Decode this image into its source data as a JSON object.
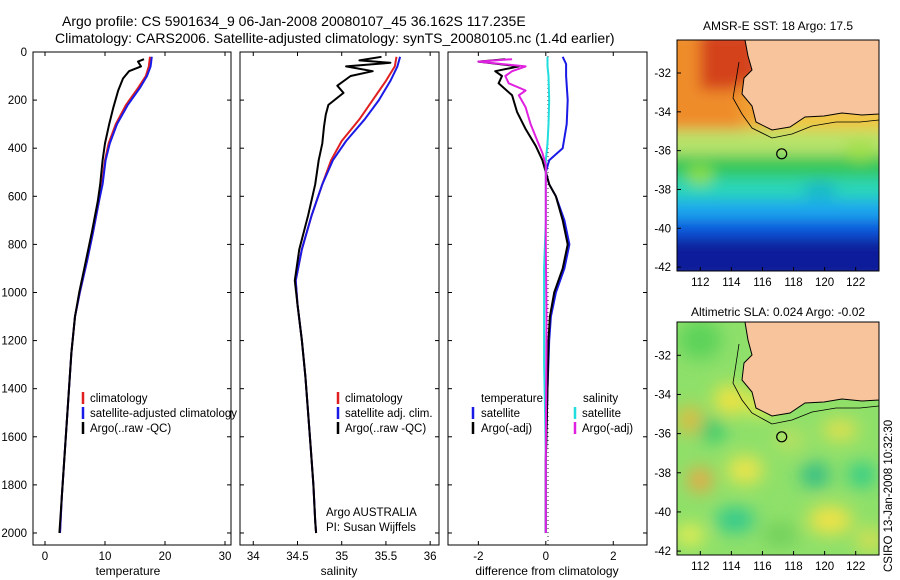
{
  "header": {
    "title_line1": "Argo profile: CS 5901634_9 06-Jan-2008 20080107_45 36.162S 117.235E",
    "title_line2": "Climatology: CARS2006. Satellite-adjusted climatology: synTS_20080105.nc (1.4d earlier)"
  },
  "colors": {
    "climatology": "#e02020",
    "satellite": "#1a1ae6",
    "argo": "#000000",
    "sat_salinity": "#22dddd",
    "argo_salinity": "#e020e0",
    "land": "#f7c49c"
  },
  "chart_data": [
    {
      "type": "line",
      "id": "temperature",
      "xlabel": "temperature",
      "xlim": [
        -2,
        31
      ],
      "ylim": [
        2050,
        0
      ],
      "xticks": [
        "0",
        "10",
        "20",
        "30"
      ],
      "xtick_values": [
        0,
        10,
        20,
        30
      ],
      "yticks": [
        "0",
        "200",
        "400",
        "600",
        "800",
        "1000",
        "1200",
        "1400",
        "1600",
        "1800",
        "2000"
      ],
      "ytick_values": [
        0,
        200,
        400,
        600,
        800,
        1000,
        1200,
        1400,
        1600,
        1800,
        2000
      ],
      "legend": [
        "climatology",
        "satellite-adjusted climatology",
        "Argo(..raw -QC)"
      ],
      "series": [
        {
          "name": "climatology",
          "color": "#e02020",
          "points": [
            [
              17.5,
              20
            ],
            [
              17.3,
              60
            ],
            [
              16.8,
              100
            ],
            [
              15.5,
              150
            ],
            [
              13.5,
              220
            ],
            [
              11.8,
              300
            ],
            [
              10.6,
              380
            ],
            [
              10.0,
              450
            ],
            [
              9.5,
              550
            ],
            [
              9.0,
              620
            ],
            [
              8.0,
              750
            ],
            [
              7.0,
              870
            ],
            [
              5.8,
              1000
            ],
            [
              5.0,
              1100
            ],
            [
              4.4,
              1250
            ],
            [
              4.0,
              1400
            ],
            [
              3.6,
              1550
            ],
            [
              3.2,
              1700
            ],
            [
              2.8,
              1850
            ],
            [
              2.5,
              2000
            ]
          ]
        },
        {
          "name": "satellite-adjusted climatology",
          "color": "#1a1ae6",
          "points": [
            [
              17.8,
              20
            ],
            [
              17.6,
              60
            ],
            [
              17.0,
              100
            ],
            [
              15.8,
              150
            ],
            [
              13.8,
              220
            ],
            [
              12.0,
              300
            ],
            [
              10.8,
              380
            ],
            [
              10.1,
              450
            ],
            [
              9.6,
              550
            ],
            [
              9.0,
              620
            ],
            [
              8.0,
              750
            ],
            [
              7.0,
              870
            ],
            [
              5.8,
              1000
            ],
            [
              5.0,
              1100
            ],
            [
              4.4,
              1250
            ],
            [
              4.0,
              1400
            ],
            [
              3.6,
              1550
            ],
            [
              3.2,
              1700
            ],
            [
              2.8,
              1850
            ],
            [
              2.5,
              2000
            ]
          ]
        },
        {
          "name": "Argo(..raw -QC)",
          "color": "#000000",
          "points": [
            [
              16.5,
              30
            ],
            [
              15.5,
              40
            ],
            [
              16.0,
              60
            ],
            [
              14.0,
              80
            ],
            [
              13.0,
              110
            ],
            [
              12.2,
              160
            ],
            [
              11.4,
              230
            ],
            [
              10.7,
              300
            ],
            [
              10.0,
              380
            ],
            [
              9.6,
              450
            ],
            [
              9.2,
              550
            ],
            [
              8.8,
              620
            ],
            [
              7.8,
              750
            ],
            [
              6.8,
              870
            ],
            [
              5.7,
              1000
            ],
            [
              5.0,
              1100
            ],
            [
              4.4,
              1250
            ],
            [
              4.0,
              1400
            ],
            [
              3.6,
              1550
            ],
            [
              3.2,
              1700
            ],
            [
              2.8,
              1850
            ],
            [
              2.4,
              2000
            ]
          ]
        }
      ]
    },
    {
      "type": "line",
      "id": "salinity",
      "xlabel": "salinity",
      "xlim": [
        33.85,
        36.1
      ],
      "ylim": [
        2050,
        0
      ],
      "xticks": [
        "34",
        "34.5",
        "35",
        "35.5",
        "36"
      ],
      "xtick_values": [
        34,
        34.5,
        35,
        35.5,
        36
      ],
      "legend": [
        "climatology",
        "satellite adj. clim.",
        "Argo(..raw -QC)"
      ],
      "annotation_line1": "Argo AUSTRALIA",
      "annotation_line2": "PI: Susan Wijffels",
      "series": [
        {
          "name": "climatology",
          "color": "#e02020",
          "points": [
            [
              35.62,
              20
            ],
            [
              35.6,
              60
            ],
            [
              35.5,
              120
            ],
            [
              35.35,
              200
            ],
            [
              35.2,
              280
            ],
            [
              35.0,
              370
            ],
            [
              34.88,
              450
            ],
            [
              34.78,
              550
            ],
            [
              34.66,
              680
            ],
            [
              34.55,
              820
            ],
            [
              34.48,
              950
            ],
            [
              34.5,
              1050
            ],
            [
              34.55,
              1200
            ],
            [
              34.59,
              1350
            ],
            [
              34.62,
              1500
            ],
            [
              34.65,
              1650
            ],
            [
              34.68,
              1800
            ],
            [
              34.7,
              1950
            ],
            [
              34.71,
              2000
            ]
          ]
        },
        {
          "name": "satellite adj. clim.",
          "color": "#1a1ae6",
          "points": [
            [
              35.66,
              20
            ],
            [
              35.63,
              60
            ],
            [
              35.55,
              120
            ],
            [
              35.42,
              200
            ],
            [
              35.26,
              280
            ],
            [
              35.05,
              370
            ],
            [
              34.9,
              450
            ],
            [
              34.78,
              550
            ],
            [
              34.66,
              680
            ],
            [
              34.55,
              820
            ],
            [
              34.48,
              950
            ],
            [
              34.5,
              1050
            ],
            [
              34.55,
              1200
            ],
            [
              34.59,
              1350
            ],
            [
              34.62,
              1500
            ],
            [
              34.65,
              1650
            ],
            [
              34.68,
              1800
            ],
            [
              34.7,
              1950
            ],
            [
              34.71,
              2000
            ]
          ]
        },
        {
          "name": "Argo(..raw -QC)",
          "color": "#000000",
          "points": [
            [
              35.45,
              20
            ],
            [
              35.2,
              35
            ],
            [
              35.55,
              45
            ],
            [
              35.05,
              60
            ],
            [
              35.35,
              80
            ],
            [
              35.1,
              100
            ],
            [
              34.95,
              140
            ],
            [
              35.02,
              170
            ],
            [
              34.85,
              220
            ],
            [
              34.82,
              260
            ],
            [
              34.8,
              310
            ],
            [
              34.78,
              380
            ],
            [
              34.74,
              450
            ],
            [
              34.7,
              550
            ],
            [
              34.62,
              680
            ],
            [
              34.52,
              820
            ],
            [
              34.47,
              950
            ],
            [
              34.5,
              1050
            ],
            [
              34.55,
              1200
            ],
            [
              34.59,
              1350
            ],
            [
              34.62,
              1500
            ],
            [
              34.65,
              1650
            ],
            [
              34.68,
              1800
            ],
            [
              34.7,
              1950
            ],
            [
              34.71,
              2000
            ]
          ]
        }
      ]
    },
    {
      "type": "line",
      "id": "difference",
      "xlabel": "difference from climatology",
      "xlim": [
        -2.9,
        3.0
      ],
      "ylim": [
        2050,
        0
      ],
      "xticks": [
        "-2",
        "0",
        "2"
      ],
      "xtick_values": [
        -2,
        0,
        2
      ],
      "legend_temperature_header": "temperature",
      "legend_salinity_header": "salinity",
      "legend_temperature_items": [
        "satellite",
        "Argo(-adj)"
      ],
      "legend_salinity_items": [
        "satellite",
        "Argo(-adj)"
      ],
      "series": [
        {
          "name": "temperature satellite",
          "color": "#1a1ae6",
          "points": [
            [
              0.5,
              20
            ],
            [
              0.6,
              50
            ],
            [
              0.6,
              100
            ],
            [
              0.65,
              200
            ],
            [
              0.62,
              300
            ],
            [
              0.5,
              400
            ],
            [
              0.1,
              450
            ],
            [
              0.0,
              500
            ],
            [
              0.1,
              550
            ],
            [
              0.3,
              600
            ],
            [
              0.55,
              700
            ],
            [
              0.7,
              800
            ],
            [
              0.55,
              900
            ],
            [
              0.3,
              1000
            ],
            [
              0.15,
              1100
            ],
            [
              0.1,
              1200
            ],
            [
              0.05,
              1400
            ],
            [
              0.0,
              1700
            ],
            [
              0.0,
              2000
            ]
          ]
        },
        {
          "name": "temperature Argo(-adj)",
          "color": "#000000",
          "points": [
            [
              -1.2,
              30
            ],
            [
              -2.0,
              40
            ],
            [
              -0.8,
              60
            ],
            [
              -1.5,
              80
            ],
            [
              -1.3,
              100
            ],
            [
              -1.4,
              130
            ],
            [
              -1.0,
              180
            ],
            [
              -0.85,
              250
            ],
            [
              -0.6,
              320
            ],
            [
              -0.3,
              390
            ],
            [
              -0.1,
              450
            ],
            [
              0.0,
              500
            ],
            [
              0.1,
              550
            ],
            [
              0.3,
              600
            ],
            [
              0.5,
              700
            ],
            [
              0.65,
              800
            ],
            [
              0.5,
              900
            ],
            [
              0.25,
              1000
            ],
            [
              0.12,
              1100
            ],
            [
              0.08,
              1200
            ],
            [
              0.05,
              1400
            ],
            [
              0.0,
              1700
            ],
            [
              0.0,
              2000
            ]
          ]
        },
        {
          "name": "salinity satellite",
          "color": "#22dddd",
          "points": [
            [
              0.05,
              20
            ],
            [
              0.05,
              60
            ],
            [
              0.08,
              100
            ],
            [
              0.1,
              200
            ],
            [
              0.08,
              300
            ],
            [
              0.05,
              380
            ],
            [
              0.0,
              450
            ],
            [
              0.0,
              550
            ],
            [
              0.0,
              700
            ],
            [
              -0.05,
              900
            ],
            [
              -0.05,
              1100
            ],
            [
              -0.05,
              1300
            ],
            [
              -0.02,
              1500
            ],
            [
              0.0,
              1700
            ],
            [
              0.0,
              2000
            ]
          ]
        },
        {
          "name": "salinity Argo(-adj)",
          "color": "#e020e0",
          "points": [
            [
              -1.0,
              30
            ],
            [
              -2.0,
              40
            ],
            [
              -0.6,
              60
            ],
            [
              -1.0,
              80
            ],
            [
              -1.2,
              100
            ],
            [
              -1.1,
              130
            ],
            [
              -0.6,
              160
            ],
            [
              -0.8,
              180
            ],
            [
              -0.6,
              230
            ],
            [
              -0.45,
              300
            ],
            [
              -0.25,
              370
            ],
            [
              -0.1,
              420
            ],
            [
              0.0,
              470
            ],
            [
              0.0,
              600
            ],
            [
              0.0,
              800
            ],
            [
              0.02,
              1100
            ],
            [
              0.01,
              1400
            ],
            [
              0.0,
              1700
            ],
            [
              0.0,
              2000
            ]
          ]
        }
      ]
    },
    {
      "type": "heatmap",
      "id": "sst-map",
      "title": "AMSR-E SST: 18 Argo: 17.5",
      "xlim": [
        110.5,
        123.5
      ],
      "ylim": [
        -42.2,
        -30.3
      ],
      "xticks": [
        "112",
        "114",
        "116",
        "118",
        "120",
        "122"
      ],
      "xtick_values": [
        112,
        114,
        116,
        118,
        120,
        122
      ],
      "yticks": [
        "-32",
        "-34",
        "-36",
        "-38",
        "-40",
        "-42"
      ],
      "ytick_values": [
        -32,
        -34,
        -36,
        -38,
        -40,
        -42
      ],
      "float_position": [
        117.235,
        -36.162
      ]
    },
    {
      "type": "heatmap",
      "id": "sla-map",
      "title": "Altimetric SLA: 0.024 Argo: -0.02",
      "xlim": [
        110.5,
        123.5
      ],
      "ylim": [
        -42.2,
        -30.3
      ],
      "xticks": [
        "112",
        "114",
        "116",
        "118",
        "120",
        "122"
      ],
      "xtick_values": [
        112,
        114,
        116,
        118,
        120,
        122
      ],
      "yticks": [
        "-32",
        "-34",
        "-36",
        "-38",
        "-40",
        "-42"
      ],
      "ytick_values": [
        -32,
        -34,
        -36,
        -38,
        -40,
        -42
      ],
      "float_position": [
        117.235,
        -36.162
      ]
    }
  ],
  "footer": {
    "stamp": "CSIRO 13-Jan-2008 10:32:30"
  }
}
